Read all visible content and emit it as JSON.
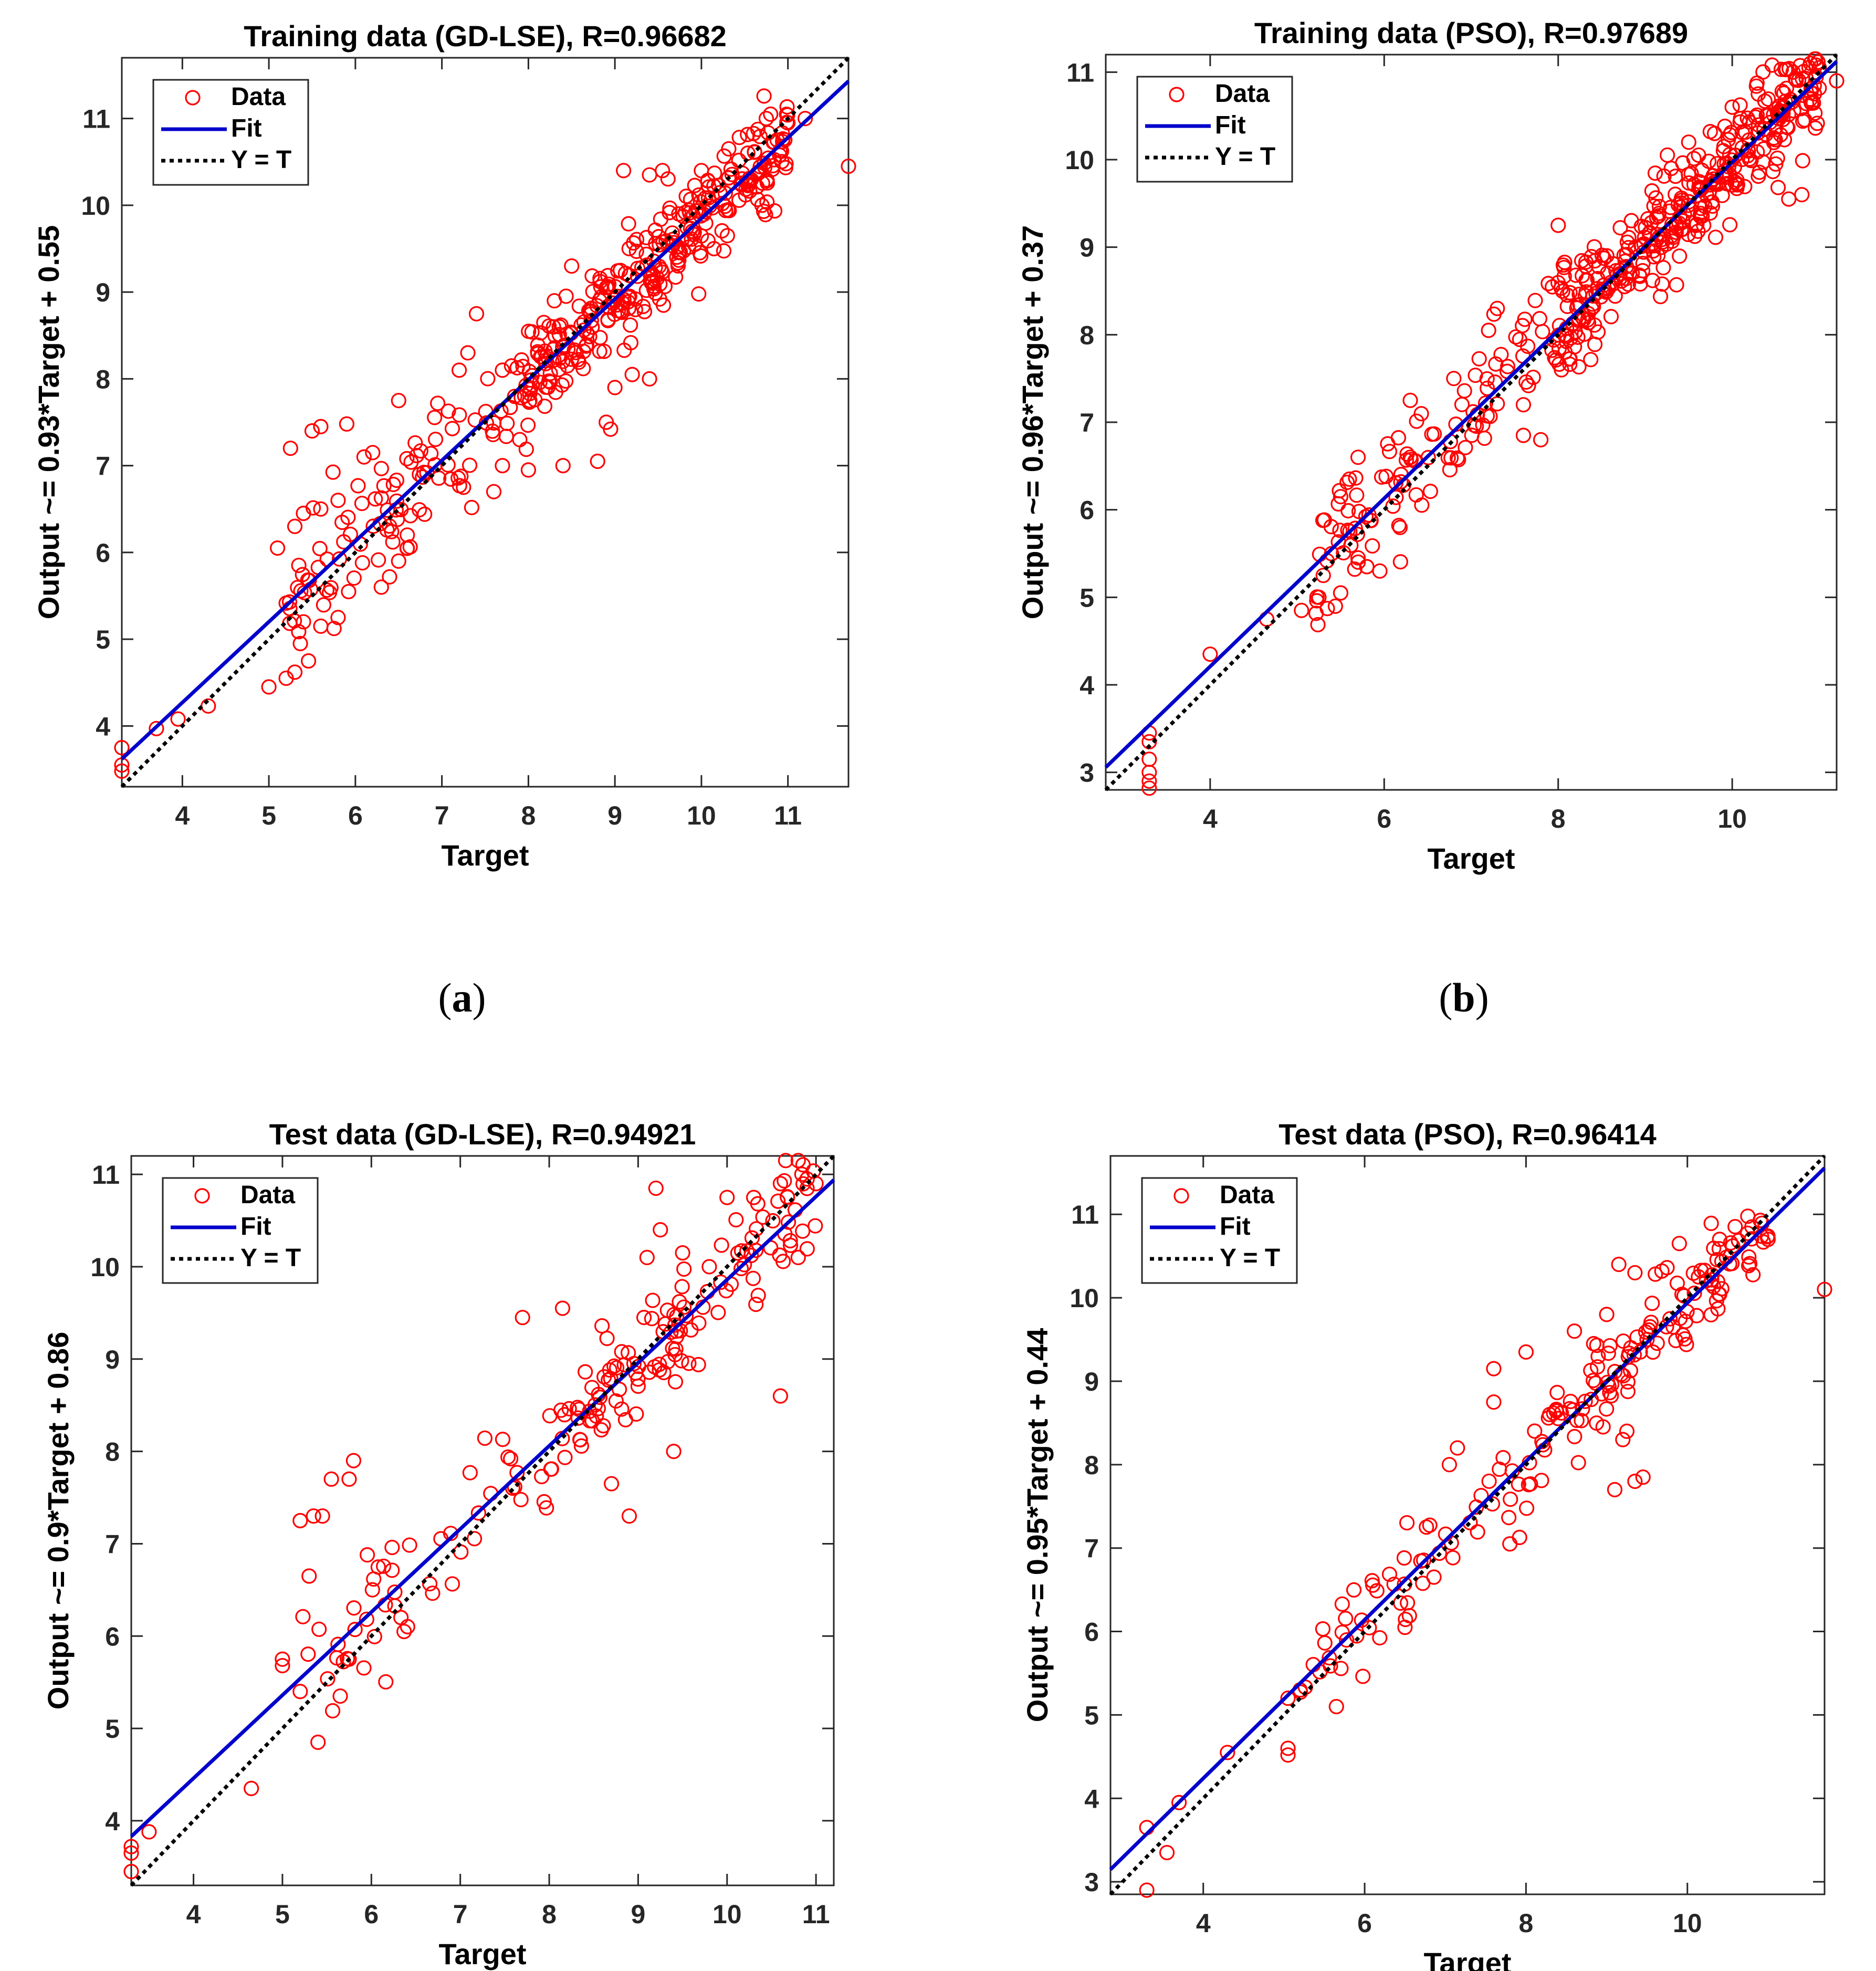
{
  "figure": {
    "captions": [
      {
        "open": "(",
        "letter": "a",
        "close": ")"
      },
      {
        "open": "(",
        "letter": "b",
        "close": ")"
      }
    ]
  },
  "legend_labels": [
    "Data",
    "Fit",
    "Y = T"
  ],
  "colors": {
    "data": "#ff0000",
    "fit": "#0000cc",
    "identity": "#000000"
  },
  "chart_data": [
    {
      "type": "scatter",
      "title": "Training data (GD-LSE), R=0.96682",
      "xlabel": "Target",
      "ylabel": "Output ~= 0.93*Target + 0.55",
      "xlim": [
        3.3,
        11.7
      ],
      "ylim": [
        3.3,
        11.7
      ],
      "xticks": [
        4,
        5,
        6,
        7,
        8,
        9,
        10,
        11
      ],
      "yticks": [
        4,
        5,
        6,
        7,
        8,
        9,
        10,
        11
      ],
      "fit": {
        "slope": 0.93,
        "intercept": 0.55
      },
      "legend": [
        "Data",
        "Fit",
        "Y = T"
      ],
      "n_points": 460,
      "points": [
        [
          3.3,
          3.48
        ],
        [
          3.3,
          3.55
        ],
        [
          3.3,
          3.75
        ],
        [
          3.7,
          3.97
        ],
        [
          3.95,
          4.08
        ],
        [
          4.3,
          4.23
        ],
        [
          5.0,
          4.45
        ],
        [
          5.2,
          4.55
        ],
        [
          5.3,
          4.62
        ],
        [
          5.25,
          7.2
        ],
        [
          5.5,
          7.4
        ],
        [
          5.6,
          7.45
        ],
        [
          5.9,
          7.48
        ],
        [
          5.4,
          6.45
        ],
        [
          5.6,
          6.5
        ],
        [
          5.8,
          6.6
        ],
        [
          5.3,
          6.3
        ],
        [
          5.1,
          6.05
        ],
        [
          6.1,
          7.1
        ],
        [
          6.2,
          7.15
        ],
        [
          6.5,
          7.75
        ],
        [
          7.2,
          8.1
        ],
        [
          7.3,
          8.3
        ],
        [
          7.4,
          8.75
        ],
        [
          7.7,
          8.1
        ],
        [
          8.5,
          9.3
        ],
        [
          8.3,
          8.9
        ],
        [
          8.8,
          7.05
        ],
        [
          8.4,
          7.0
        ],
        [
          8.0,
          6.95
        ],
        [
          7.9,
          7.3
        ],
        [
          7.6,
          6.7
        ],
        [
          7.7,
          7.0
        ],
        [
          7.25,
          6.75
        ],
        [
          6.6,
          6.2
        ],
        [
          6.6,
          6.05
        ],
        [
          6.5,
          5.9
        ],
        [
          6.3,
          5.6
        ],
        [
          5.8,
          5.25
        ],
        [
          5.6,
          5.15
        ],
        [
          5.4,
          5.2
        ],
        [
          9.2,
          8.05
        ],
        [
          9.4,
          8.0
        ],
        [
          9.0,
          7.9
        ],
        [
          8.9,
          7.5
        ],
        [
          8.95,
          7.42
        ],
        [
          9.1,
          10.4
        ],
        [
          9.4,
          10.35
        ],
        [
          9.55,
          10.4
        ],
        [
          10.0,
          10.4
        ],
        [
          10.7,
          10.0
        ],
        [
          10.3,
          9.65
        ],
        [
          11.7,
          10.45
        ],
        [
          11.2,
          11.0
        ],
        [
          11.0,
          10.95
        ],
        [
          10.8,
          11.05
        ],
        [
          10.75,
          11.0
        ]
      ],
      "seed": 11
    },
    {
      "type": "scatter",
      "title": "Training data (PSO), R=0.97689",
      "xlabel": "Target",
      "ylabel": "Output ~= 0.96*Target + 0.37",
      "xlim": [
        2.8,
        11.2
      ],
      "ylim": [
        2.8,
        11.2
      ],
      "xticks": [
        4,
        6,
        8,
        10
      ],
      "yticks": [
        3,
        4,
        5,
        6,
        7,
        8,
        9,
        10,
        11
      ],
      "fit": {
        "slope": 0.96,
        "intercept": 0.37
      },
      "legend": [
        "Data",
        "Fit",
        "Y = T"
      ],
      "n_points": 500,
      "points": [
        [
          3.3,
          2.82
        ],
        [
          3.3,
          2.9
        ],
        [
          3.3,
          3.0
        ],
        [
          3.3,
          3.15
        ],
        [
          3.3,
          3.35
        ],
        [
          3.3,
          3.45
        ],
        [
          4.0,
          4.35
        ],
        [
          4.65,
          4.75
        ],
        [
          5.05,
          4.85
        ],
        [
          5.25,
          5.0
        ],
        [
          5.3,
          5.25
        ],
        [
          5.5,
          5.05
        ],
        [
          5.7,
          5.45
        ],
        [
          5.8,
          5.35
        ],
        [
          5.95,
          5.3
        ],
        [
          5.7,
          6.6
        ],
        [
          5.6,
          6.35
        ],
        [
          5.5,
          6.15
        ],
        [
          6.3,
          7.25
        ],
        [
          6.3,
          6.6
        ],
        [
          6.8,
          7.5
        ],
        [
          7.3,
          8.3
        ],
        [
          7.2,
          8.05
        ],
        [
          7.6,
          7.2
        ],
        [
          7.6,
          6.85
        ],
        [
          7.8,
          6.8
        ],
        [
          8.0,
          9.25
        ],
        [
          9.3,
          9.9
        ],
        [
          9.5,
          10.2
        ],
        [
          10.3,
          10.75
        ],
        [
          10.0,
          10.6
        ],
        [
          10.6,
          10.6
        ],
        [
          10.5,
          9.95
        ],
        [
          10.65,
          9.55
        ],
        [
          10.8,
          9.6
        ],
        [
          11.2,
          10.9
        ],
        [
          11.0,
          11.05
        ],
        [
          10.7,
          11.0
        ],
        [
          10.9,
          11.1
        ]
      ],
      "seed": 22
    },
    {
      "type": "scatter",
      "title": "Test data (GD-LSE), R=0.94921",
      "xlabel": "Target",
      "ylabel": "Output ~= 0.9*Target + 0.86",
      "xlim": [
        3.3,
        11.2
      ],
      "ylim": [
        3.3,
        11.2
      ],
      "xticks": [
        4,
        5,
        6,
        7,
        8,
        9,
        10,
        11
      ],
      "yticks": [
        4,
        5,
        6,
        7,
        8,
        9,
        10,
        11
      ],
      "fit": {
        "slope": 0.9,
        "intercept": 0.86
      },
      "legend": [
        "Data",
        "Fit",
        "Y = T"
      ],
      "n_points": 210,
      "points": [
        [
          3.3,
          3.45
        ],
        [
          3.3,
          3.65
        ],
        [
          3.3,
          3.72
        ],
        [
          3.5,
          3.88
        ],
        [
          4.65,
          4.35
        ],
        [
          5.0,
          5.75
        ],
        [
          5.0,
          5.68
        ],
        [
          5.2,
          5.4
        ],
        [
          5.4,
          4.85
        ],
        [
          5.2,
          7.25
        ],
        [
          5.35,
          7.3
        ],
        [
          5.45,
          7.3
        ],
        [
          5.55,
          7.7
        ],
        [
          5.75,
          7.7
        ],
        [
          5.8,
          7.9
        ],
        [
          5.3,
          6.65
        ],
        [
          5.65,
          5.35
        ],
        [
          5.75,
          5.75
        ],
        [
          7.7,
          9.45
        ],
        [
          8.15,
          9.55
        ],
        [
          8.7,
          7.65
        ],
        [
          8.9,
          7.3
        ],
        [
          9.4,
          8.0
        ],
        [
          9.2,
          10.85
        ],
        [
          9.25,
          10.4
        ],
        [
          9.1,
          10.1
        ],
        [
          9.5,
          10.15
        ],
        [
          9.8,
          10.0
        ],
        [
          10.0,
          10.75
        ],
        [
          10.3,
          10.75
        ],
        [
          10.6,
          10.9
        ],
        [
          10.8,
          11.15
        ],
        [
          10.9,
          10.95
        ],
        [
          10.8,
          10.1
        ],
        [
          10.6,
          8.6
        ],
        [
          11.0,
          10.9
        ]
      ],
      "seed": 33
    },
    {
      "type": "scatter",
      "title": "Test data (PSO), R=0.96414",
      "xlabel": "Target",
      "ylabel": "Output ~= 0.95*Target + 0.44",
      "xlim": [
        2.85,
        11.7
      ],
      "ylim": [
        2.85,
        11.7
      ],
      "xticks": [
        4,
        6,
        8,
        10
      ],
      "yticks": [
        3,
        4,
        5,
        6,
        7,
        8,
        9,
        10,
        11
      ],
      "fit": {
        "slope": 0.95,
        "intercept": 0.44
      },
      "legend": [
        "Data",
        "Fit",
        "Y = T"
      ],
      "n_points": 210,
      "points": [
        [
          3.3,
          2.9
        ],
        [
          3.3,
          3.65
        ],
        [
          3.55,
          3.35
        ],
        [
          3.7,
          3.95
        ],
        [
          4.3,
          4.55
        ],
        [
          5.05,
          4.6
        ],
        [
          5.05,
          4.52
        ],
        [
          5.05,
          5.2
        ],
        [
          5.2,
          5.3
        ],
        [
          5.65,
          5.1
        ],
        [
          7.05,
          8.0
        ],
        [
          7.15,
          8.2
        ],
        [
          7.6,
          9.15
        ],
        [
          7.6,
          8.75
        ],
        [
          8.0,
          9.35
        ],
        [
          8.6,
          9.6
        ],
        [
          9.0,
          9.8
        ],
        [
          9.15,
          10.4
        ],
        [
          9.35,
          10.3
        ],
        [
          9.5,
          9.5
        ],
        [
          9.1,
          7.7
        ],
        [
          9.35,
          7.8
        ],
        [
          9.45,
          7.85
        ],
        [
          9.2,
          8.3
        ],
        [
          9.25,
          8.4
        ],
        [
          9.9,
          10.65
        ],
        [
          10.4,
          10.7
        ],
        [
          10.8,
          10.85
        ],
        [
          11.0,
          10.7
        ],
        [
          11.7,
          10.1
        ],
        [
          7.8,
          7.05
        ],
        [
          6.5,
          6.05
        ]
      ],
      "seed": 44
    }
  ]
}
